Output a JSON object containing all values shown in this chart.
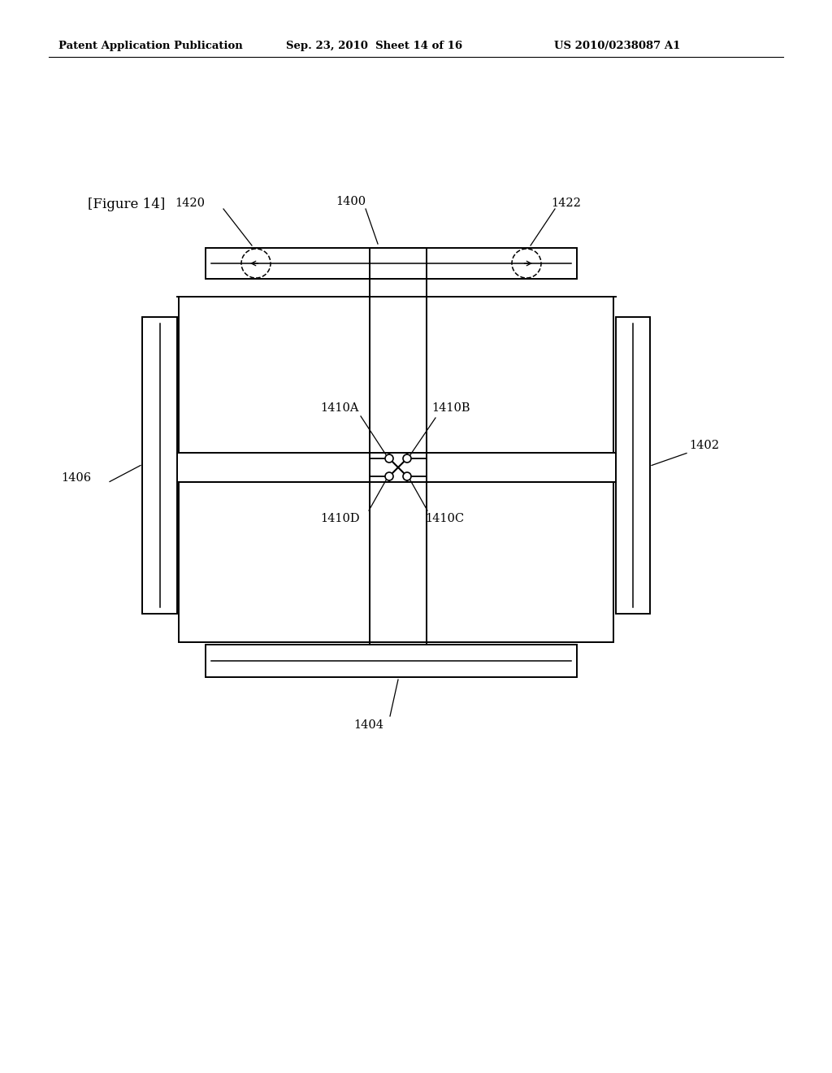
{
  "title_line1": "Patent Application Publication",
  "title_line2": "Sep. 23, 2010  Sheet 14 of 16",
  "title_line3": "US 2010/0238087 A1",
  "figure_label": "[Figure 14]",
  "bg_color": "#ffffff",
  "line_color": "#000000",
  "label_1400": "1400",
  "label_1402": "1402",
  "label_1404": "1404",
  "label_1406": "1406",
  "label_1420": "1420",
  "label_1422": "1422",
  "label_1410A": "1410A",
  "label_1410B": "1410B",
  "label_1410C": "1410C",
  "label_1410D": "1410D"
}
